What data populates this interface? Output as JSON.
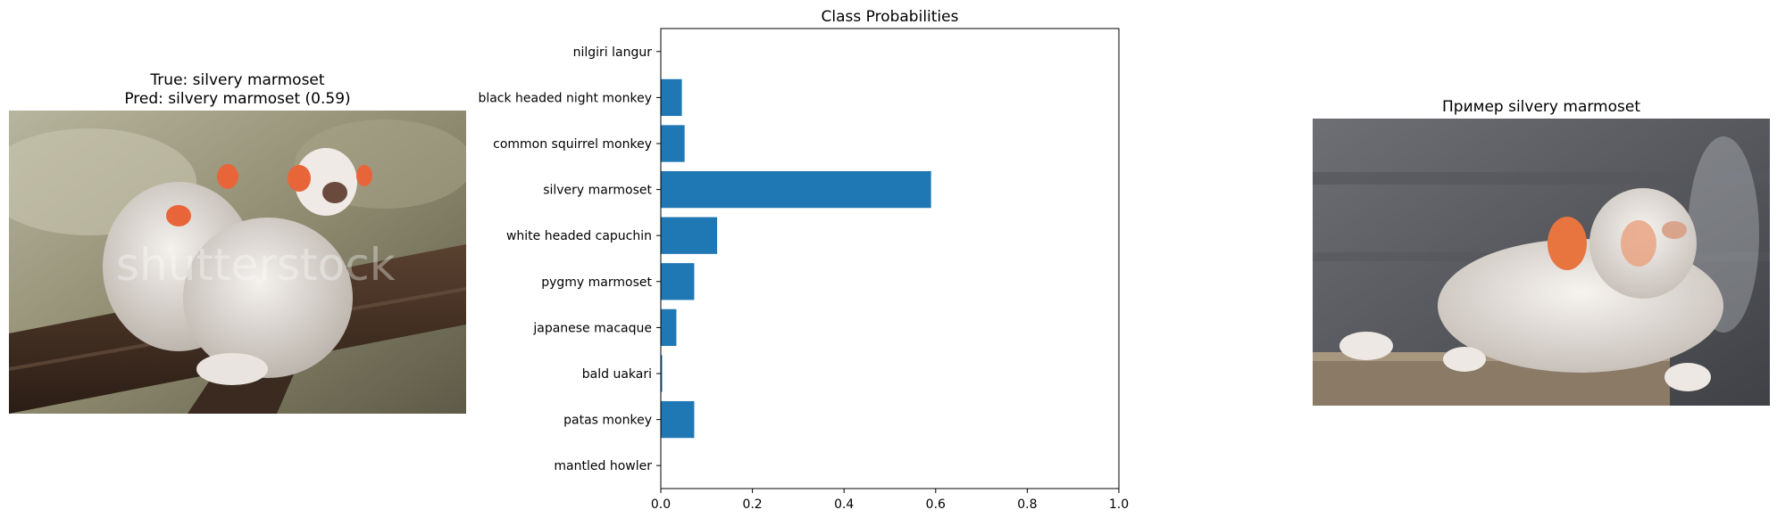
{
  "left_panel": {
    "title_true": "True: silvery marmoset",
    "title_pred": "Pred: silvery marmoset (0.59)",
    "watermark": "shutterstock"
  },
  "right_panel": {
    "title": "Пример silvery marmoset"
  },
  "chart_data": {
    "type": "bar",
    "orientation": "horizontal",
    "title": "Class Probabilities",
    "xlabel": "",
    "ylabel": "",
    "categories": [
      "nilgiri langur",
      "black headed night monkey",
      "common squirrel monkey",
      "silvery marmoset",
      "white headed capuchin",
      "pygmy marmoset",
      "japanese macaque",
      "bald uakari",
      "patas monkey",
      "mantled howler"
    ],
    "values": [
      0.0,
      0.046,
      0.052,
      0.59,
      0.123,
      0.073,
      0.034,
      0.003,
      0.073,
      0.0
    ],
    "xlim": [
      0,
      1
    ],
    "xticks": [
      "0.0",
      "0.2",
      "0.4",
      "0.6",
      "0.8",
      "1.0"
    ],
    "xtick_values": [
      0,
      0.2,
      0.4,
      0.6,
      0.8,
      1.0
    ],
    "bar_color": "#1f77b4",
    "grid": false
  }
}
